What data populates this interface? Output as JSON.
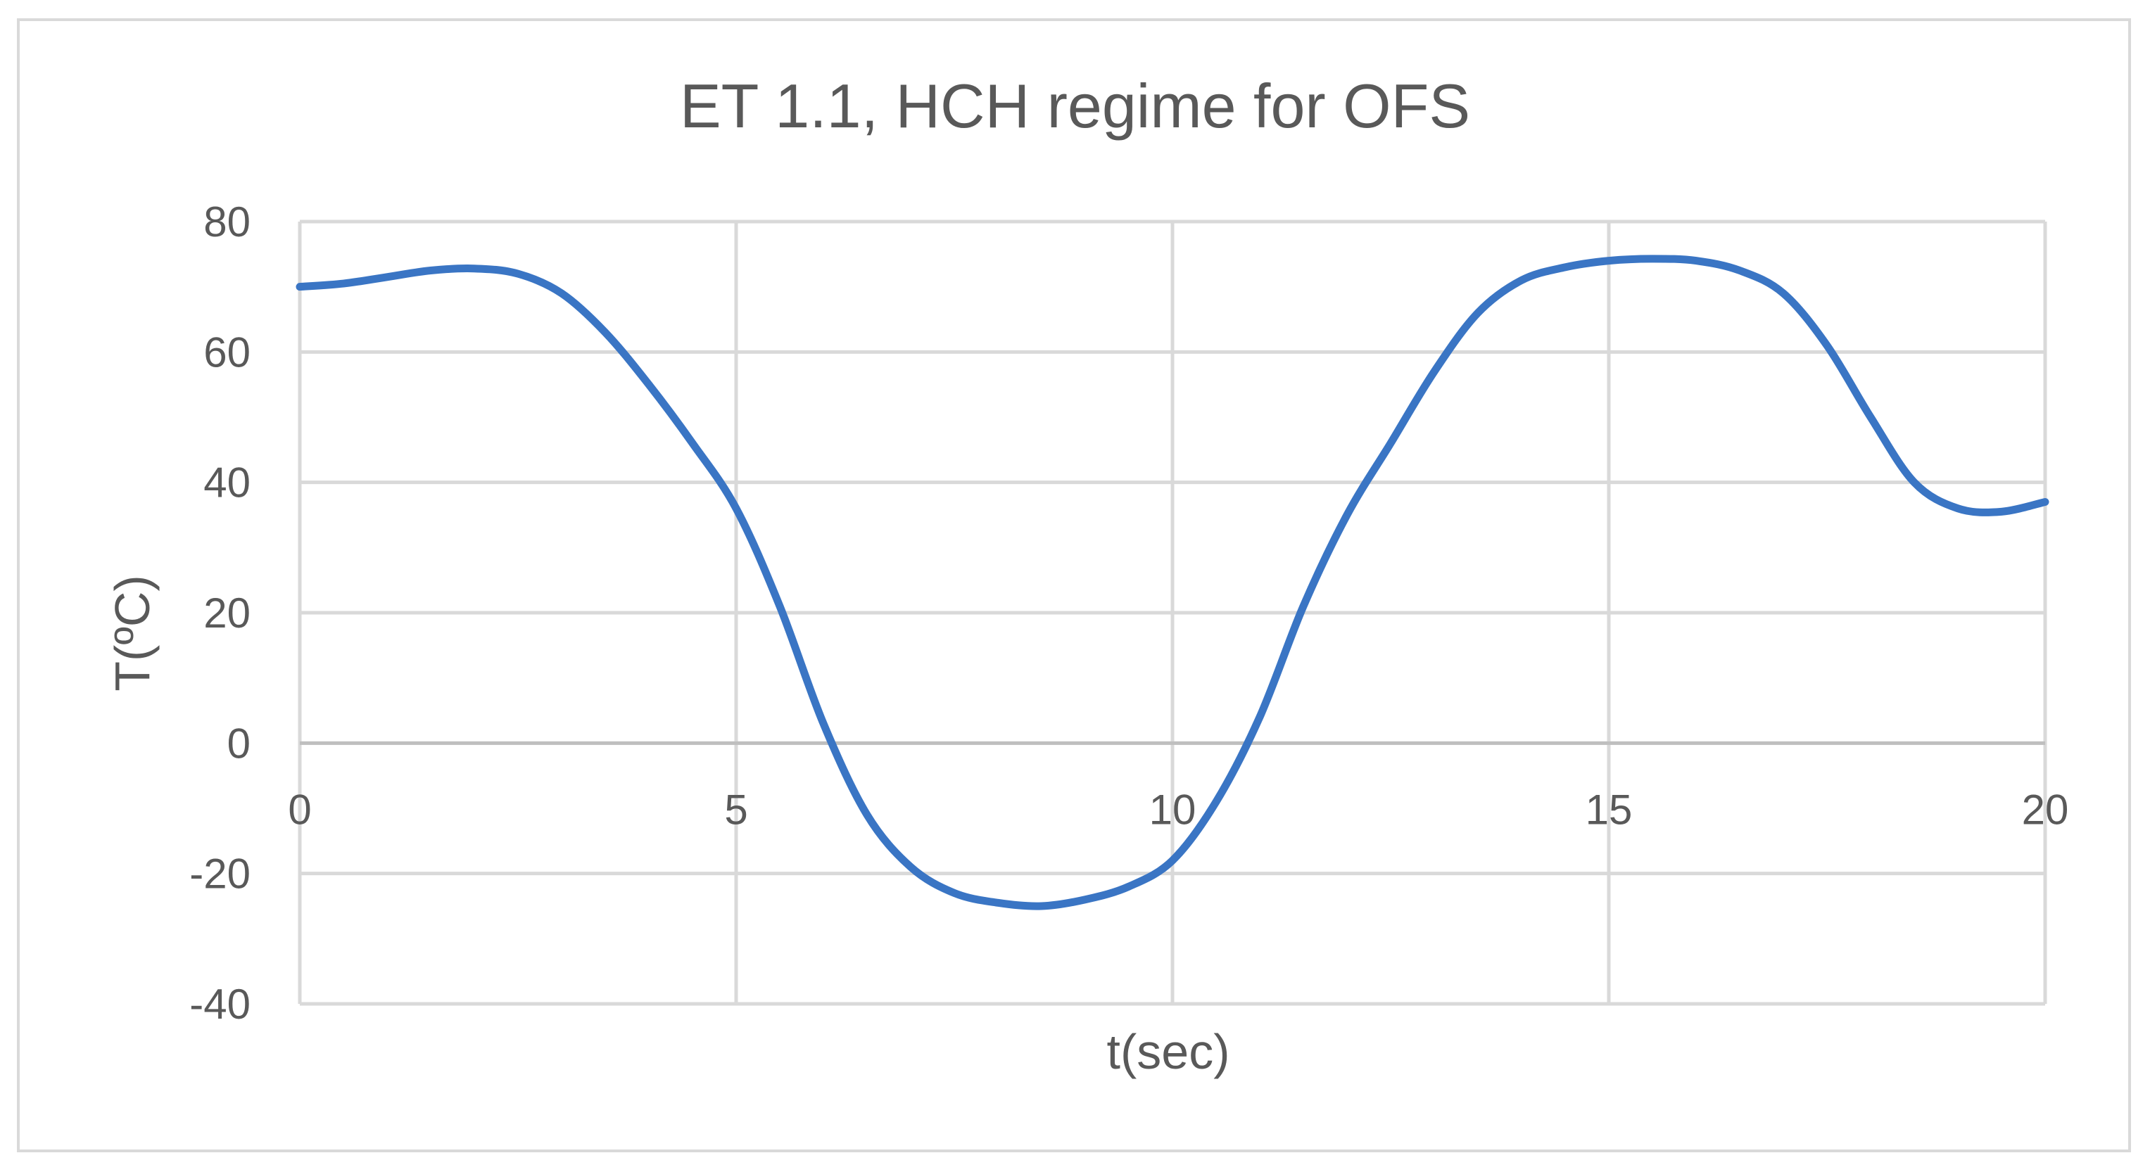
{
  "chart_data": {
    "type": "line",
    "title": "ET 1.1, HCH regime for OFS",
    "xlabel": "t(sec)",
    "ylabel": "T(ºC)",
    "xlim": [
      0,
      20
    ],
    "ylim": [
      -40,
      80
    ],
    "xticks": [
      0,
      5,
      10,
      15,
      20
    ],
    "yticks": [
      -40,
      -20,
      0,
      20,
      40,
      60,
      80
    ],
    "grid": true,
    "legend": "none",
    "series": [
      {
        "color": "#3a75c4",
        "x": [
          0,
          0.5,
          1,
          1.5,
          2,
          2.5,
          3,
          3.5,
          4,
          4.5,
          5,
          5.5,
          6,
          6.5,
          7,
          7.5,
          8,
          8.5,
          9,
          9.5,
          10,
          10.5,
          11,
          11.5,
          12,
          12.5,
          13,
          13.5,
          14,
          14.5,
          15,
          15.5,
          16,
          16.5,
          17,
          17.5,
          18,
          18.5,
          19,
          19.5,
          20
        ],
        "y": [
          70,
          70.5,
          71.5,
          72.5,
          72.8,
          72,
          69,
          63,
          55,
          46,
          36,
          21,
          3,
          -11,
          -19,
          -23,
          -24.5,
          -25,
          -24,
          -22,
          -18,
          -9,
          4,
          21,
          35,
          46,
          57,
          66,
          71,
          73,
          74,
          74.3,
          74,
          72.5,
          69,
          61,
          50,
          40,
          36,
          35.5,
          37
        ]
      }
    ]
  }
}
